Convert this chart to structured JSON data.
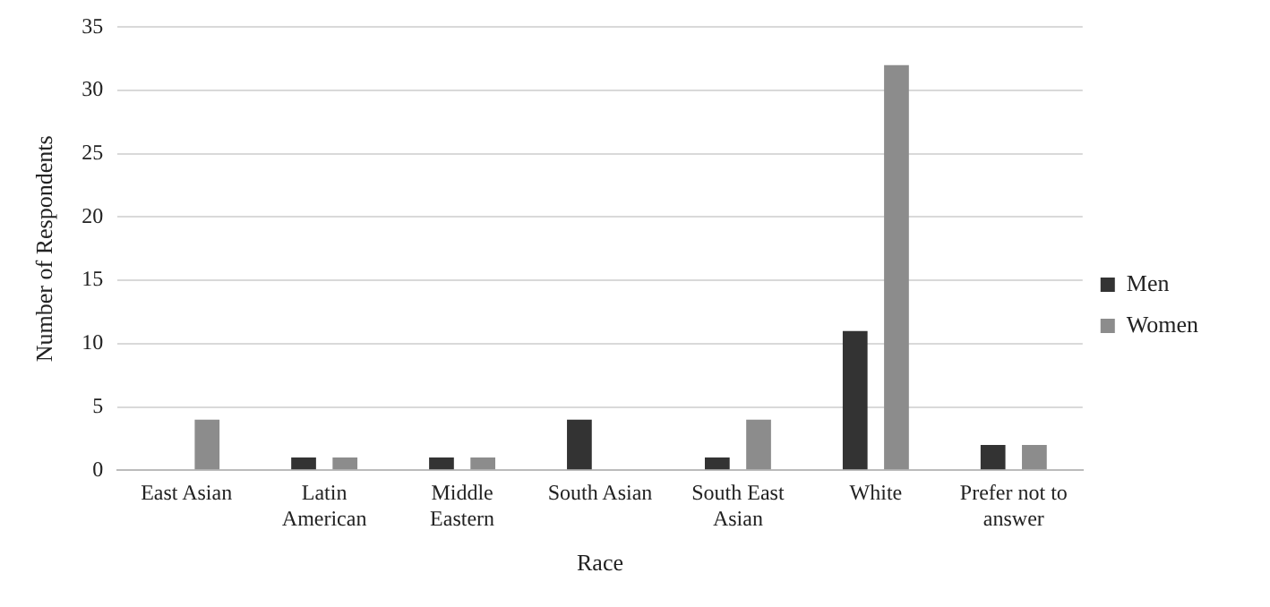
{
  "chart_data": {
    "type": "bar",
    "xlabel": "Race",
    "ylabel": "Number of Respondents",
    "categories": [
      "East Asian",
      "Latin American",
      "Middle Eastern",
      "South Asian",
      "South East Asian",
      "White",
      "Prefer not to answer"
    ],
    "series": [
      {
        "name": "Men",
        "color": "#333333",
        "values": [
          0,
          1,
          1,
          4,
          1,
          11,
          2
        ]
      },
      {
        "name": "Women",
        "color": "#8c8c8c",
        "values": [
          4,
          1,
          1,
          0,
          4,
          32,
          2
        ]
      }
    ],
    "ylim": [
      0,
      35
    ],
    "yticks": [
      0,
      5,
      10,
      15,
      20,
      25,
      30,
      35
    ],
    "grid": "y",
    "legend": "right"
  }
}
